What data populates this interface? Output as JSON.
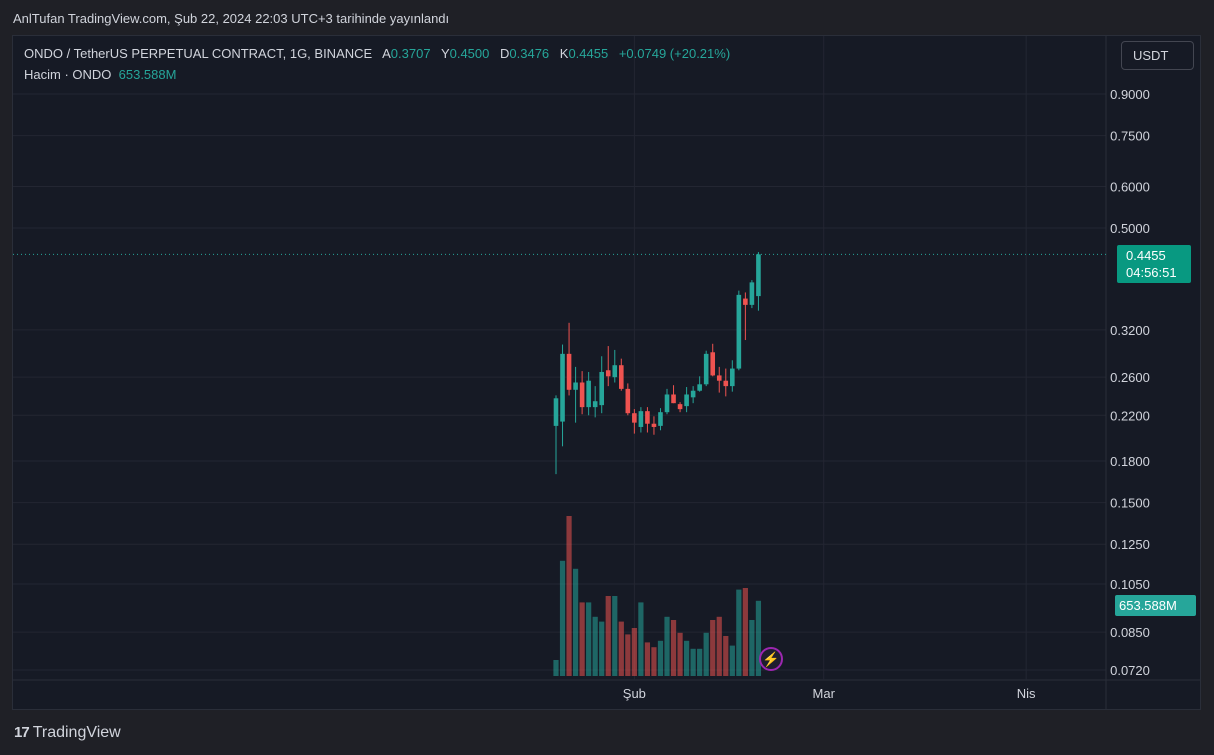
{
  "header": {
    "publish_text": "AnlTufan TradingView.com, Şub 22, 2024 22:03 UTC+3 tarihinde yayınlandı"
  },
  "legend": {
    "symbol": "ONDO / TetherUS PERPETUAL CONTRACT, 1G, BINANCE",
    "o_label": "A",
    "o_value": "0.3707",
    "h_label": "Y",
    "h_value": "0.4500",
    "l_label": "D",
    "l_value": "0.3476",
    "c_label": "K",
    "c_value": "0.4455",
    "change": "+0.0749 (+20.21%)",
    "volume_label": "Hacim · ONDO",
    "volume_value": "653.588M"
  },
  "currency_button": "USDT",
  "last_price": {
    "price": "0.4455",
    "countdown": "04:56:51"
  },
  "volume_badge": "653.588M",
  "footer": {
    "logo_mark": "17",
    "brand": "TradingView"
  },
  "colors": {
    "up": "#26a69a",
    "down": "#ef5350",
    "background": "#161a25",
    "grid": "#232632"
  },
  "icons": {
    "event_marker": "lightning-bolt-icon"
  },
  "chart_data": {
    "type": "candlestick",
    "scale": "log",
    "y_ticks": [
      "0.9000",
      "0.7500",
      "0.6000",
      "0.5000",
      "0.3200",
      "0.2600",
      "0.2200",
      "0.1800",
      "0.1500",
      "0.1250",
      "0.1050",
      "0.0850",
      "0.0720"
    ],
    "x_ticks": [
      "Şub",
      "Mar",
      "Nis"
    ],
    "x_tick_days": [
      12,
      41,
      72
    ],
    "first_candle_day": 0,
    "candles": [
      {
        "o": 0.21,
        "h": 0.24,
        "l": 0.17,
        "c": 0.237
      },
      {
        "o": 0.214,
        "h": 0.3,
        "l": 0.192,
        "c": 0.288
      },
      {
        "o": 0.288,
        "h": 0.33,
        "l": 0.24,
        "c": 0.246
      },
      {
        "o": 0.246,
        "h": 0.272,
        "l": 0.213,
        "c": 0.254
      },
      {
        "o": 0.254,
        "h": 0.267,
        "l": 0.221,
        "c": 0.228
      },
      {
        "o": 0.228,
        "h": 0.266,
        "l": 0.22,
        "c": 0.256
      },
      {
        "o": 0.228,
        "h": 0.25,
        "l": 0.218,
        "c": 0.234
      },
      {
        "o": 0.23,
        "h": 0.285,
        "l": 0.222,
        "c": 0.266
      },
      {
        "o": 0.268,
        "h": 0.298,
        "l": 0.25,
        "c": 0.261
      },
      {
        "o": 0.26,
        "h": 0.293,
        "l": 0.254,
        "c": 0.274
      },
      {
        "o": 0.274,
        "h": 0.282,
        "l": 0.245,
        "c": 0.247
      },
      {
        "o": 0.247,
        "h": 0.253,
        "l": 0.22,
        "c": 0.222
      },
      {
        "o": 0.222,
        "h": 0.226,
        "l": 0.203,
        "c": 0.213
      },
      {
        "o": 0.209,
        "h": 0.228,
        "l": 0.204,
        "c": 0.224
      },
      {
        "o": 0.224,
        "h": 0.228,
        "l": 0.204,
        "c": 0.212
      },
      {
        "o": 0.212,
        "h": 0.219,
        "l": 0.202,
        "c": 0.209
      },
      {
        "o": 0.21,
        "h": 0.227,
        "l": 0.206,
        "c": 0.223
      },
      {
        "o": 0.223,
        "h": 0.247,
        "l": 0.221,
        "c": 0.241
      },
      {
        "o": 0.241,
        "h": 0.251,
        "l": 0.232,
        "c": 0.232
      },
      {
        "o": 0.231,
        "h": 0.233,
        "l": 0.223,
        "c": 0.226
      },
      {
        "o": 0.229,
        "h": 0.249,
        "l": 0.223,
        "c": 0.241
      },
      {
        "o": 0.238,
        "h": 0.25,
        "l": 0.232,
        "c": 0.245
      },
      {
        "o": 0.245,
        "h": 0.261,
        "l": 0.244,
        "c": 0.252
      },
      {
        "o": 0.252,
        "h": 0.292,
        "l": 0.25,
        "c": 0.288
      },
      {
        "o": 0.29,
        "h": 0.301,
        "l": 0.261,
        "c": 0.262
      },
      {
        "o": 0.262,
        "h": 0.272,
        "l": 0.243,
        "c": 0.256
      },
      {
        "o": 0.256,
        "h": 0.27,
        "l": 0.239,
        "c": 0.25
      },
      {
        "o": 0.25,
        "h": 0.28,
        "l": 0.244,
        "c": 0.27
      },
      {
        "o": 0.27,
        "h": 0.38,
        "l": 0.268,
        "c": 0.373
      },
      {
        "o": 0.367,
        "h": 0.377,
        "l": 0.306,
        "c": 0.357
      },
      {
        "o": 0.357,
        "h": 0.398,
        "l": 0.352,
        "c": 0.394
      },
      {
        "o": 0.371,
        "h": 0.45,
        "l": 0.348,
        "c": 0.4455
      }
    ],
    "volume_relative": [
      0.1,
      0.72,
      1.0,
      0.67,
      0.46,
      0.46,
      0.37,
      0.34,
      0.5,
      0.5,
      0.34,
      0.26,
      0.3,
      0.46,
      0.21,
      0.18,
      0.22,
      0.37,
      0.35,
      0.27,
      0.22,
      0.17,
      0.17,
      0.27,
      0.35,
      0.37,
      0.25,
      0.19,
      0.54,
      0.55,
      0.35,
      0.47
    ]
  }
}
